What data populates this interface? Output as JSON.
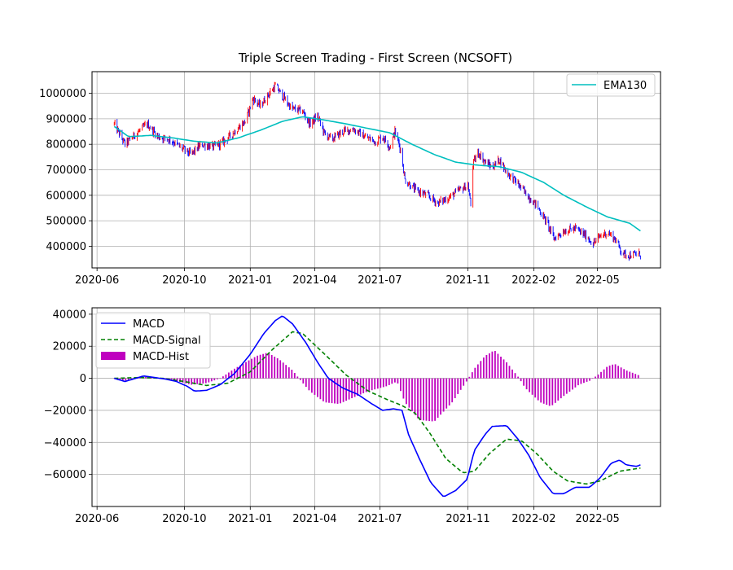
{
  "chart_data": [
    {
      "type": "candlestick",
      "title": "Triple Screen Trading - First Screen (NCSOFT)",
      "xlabel": "",
      "ylabel": "",
      "x_range": [
        "2020-05-25",
        "2022-07-28"
      ],
      "ylim": [
        315000,
        1085000
      ],
      "x_ticks": [
        "2020-06",
        "2020-10",
        "2021-01",
        "2021-04",
        "2021-07",
        "2021-11",
        "2022-02",
        "2022-05"
      ],
      "x_tick_dates": [
        "2020-06-01",
        "2020-10-01",
        "2021-01-01",
        "2021-04-01",
        "2021-07-01",
        "2021-11-01",
        "2022-02-01",
        "2022-05-01"
      ],
      "y_ticks": [
        400000,
        500000,
        600000,
        700000,
        800000,
        900000,
        1000000
      ],
      "y_tick_labels": [
        "400000",
        "500000",
        "600000",
        "700000",
        "800000",
        "900000",
        "1000000"
      ],
      "grid": true,
      "legend_position": "top-right",
      "legend": [
        "EMA130"
      ],
      "colors": {
        "up": "#ff0000",
        "down": "#0000ff",
        "ema": "#00bfbf"
      },
      "price_anchors": [
        [
          "2020-06-25",
          880000
        ],
        [
          "2020-07-10",
          800000
        ],
        [
          "2020-07-25",
          840000
        ],
        [
          "2020-08-10",
          880000
        ],
        [
          "2020-08-25",
          830000
        ],
        [
          "2020-09-10",
          820000
        ],
        [
          "2020-09-25",
          790000
        ],
        [
          "2020-10-10",
          760000
        ],
        [
          "2020-10-25",
          800000
        ],
        [
          "2020-11-10",
          790000
        ],
        [
          "2020-11-25",
          810000
        ],
        [
          "2020-12-10",
          850000
        ],
        [
          "2020-12-25",
          890000
        ],
        [
          "2021-01-05",
          980000
        ],
        [
          "2021-01-15",
          950000
        ],
        [
          "2021-01-25",
          990000
        ],
        [
          "2021-02-05",
          1030000
        ],
        [
          "2021-02-15",
          990000
        ],
        [
          "2021-02-28",
          940000
        ],
        [
          "2021-03-15",
          930000
        ],
        [
          "2021-03-25",
          880000
        ],
        [
          "2021-04-05",
          910000
        ],
        [
          "2021-04-15",
          840000
        ],
        [
          "2021-04-25",
          820000
        ],
        [
          "2021-05-10",
          850000
        ],
        [
          "2021-05-25",
          860000
        ],
        [
          "2021-06-10",
          830000
        ],
        [
          "2021-06-25",
          810000
        ],
        [
          "2021-07-05",
          830000
        ],
        [
          "2021-07-15",
          790000
        ],
        [
          "2021-07-22",
          850000
        ],
        [
          "2021-07-30",
          780000
        ],
        [
          "2021-08-05",
          660000
        ],
        [
          "2021-08-20",
          620000
        ],
        [
          "2021-09-05",
          600000
        ],
        [
          "2021-09-20",
          570000
        ],
        [
          "2021-10-05",
          590000
        ],
        [
          "2021-10-20",
          620000
        ],
        [
          "2021-11-01",
          640000
        ],
        [
          "2021-11-05",
          560000
        ],
        [
          "2021-11-08",
          720000
        ],
        [
          "2021-11-15",
          770000
        ],
        [
          "2021-11-25",
          730000
        ],
        [
          "2021-12-05",
          710000
        ],
        [
          "2021-12-15",
          740000
        ],
        [
          "2021-12-25",
          690000
        ],
        [
          "2022-01-05",
          660000
        ],
        [
          "2022-01-20",
          610000
        ],
        [
          "2022-02-05",
          560000
        ],
        [
          "2022-02-20",
          490000
        ],
        [
          "2022-03-01",
          430000
        ],
        [
          "2022-03-15",
          460000
        ],
        [
          "2022-03-31",
          470000
        ],
        [
          "2022-04-15",
          440000
        ],
        [
          "2022-04-25",
          410000
        ],
        [
          "2022-05-05",
          440000
        ],
        [
          "2022-05-15",
          455000
        ],
        [
          "2022-05-25",
          430000
        ],
        [
          "2022-05-31",
          400000
        ],
        [
          "2022-06-05",
          370000
        ],
        [
          "2022-06-15",
          365000
        ],
        [
          "2022-06-30",
          370000
        ]
      ],
      "ema_anchors": [
        [
          "2020-06-25",
          870000
        ],
        [
          "2020-07-15",
          830000
        ],
        [
          "2020-08-15",
          835000
        ],
        [
          "2020-09-15",
          825000
        ],
        [
          "2020-10-15",
          812000
        ],
        [
          "2020-11-15",
          805000
        ],
        [
          "2020-12-15",
          825000
        ],
        [
          "2021-01-15",
          855000
        ],
        [
          "2021-02-15",
          890000
        ],
        [
          "2021-03-15",
          908000
        ],
        [
          "2021-04-15",
          895000
        ],
        [
          "2021-05-15",
          880000
        ],
        [
          "2021-06-15",
          862000
        ],
        [
          "2021-07-15",
          845000
        ],
        [
          "2021-08-15",
          800000
        ],
        [
          "2021-09-15",
          760000
        ],
        [
          "2021-10-15",
          730000
        ],
        [
          "2021-11-15",
          718000
        ],
        [
          "2021-12-15",
          712000
        ],
        [
          "2022-01-15",
          690000
        ],
        [
          "2022-02-15",
          650000
        ],
        [
          "2022-03-15",
          600000
        ],
        [
          "2022-04-15",
          555000
        ],
        [
          "2022-05-15",
          515000
        ],
        [
          "2022-06-15",
          490000
        ],
        [
          "2022-06-30",
          460000
        ]
      ]
    },
    {
      "type": "line",
      "title": "",
      "xlabel": "",
      "ylabel": "",
      "x_range": [
        "2020-05-25",
        "2022-07-28"
      ],
      "ylim": [
        -80000,
        44000
      ],
      "x_ticks": [
        "2020-06",
        "2020-10",
        "2021-01",
        "2021-04",
        "2021-07",
        "2021-11",
        "2022-02",
        "2022-05"
      ],
      "x_tick_dates": [
        "2020-06-01",
        "2020-10-01",
        "2021-01-01",
        "2021-04-01",
        "2021-07-01",
        "2021-11-01",
        "2022-02-01",
        "2022-05-01"
      ],
      "y_ticks": [
        -60000,
        -40000,
        -20000,
        0,
        20000,
        40000
      ],
      "y_tick_labels": [
        "−60000",
        "−40000",
        "−20000",
        "0",
        "20000",
        "40000"
      ],
      "grid": true,
      "legend_position": "top-left",
      "legend": [
        "MACD",
        "MACD-Signal",
        "MACD-Hist"
      ],
      "colors": {
        "macd": "#0000ff",
        "signal": "#008000",
        "hist": "#bf00bf"
      },
      "series": [
        {
          "name": "MACD",
          "style": "solid",
          "points": [
            [
              "2020-06-25",
              0
            ],
            [
              "2020-07-10",
              -2000
            ],
            [
              "2020-07-25",
              0
            ],
            [
              "2020-08-05",
              1500
            ],
            [
              "2020-08-20",
              500
            ],
            [
              "2020-09-05",
              -500
            ],
            [
              "2020-09-20",
              -2000
            ],
            [
              "2020-10-05",
              -5000
            ],
            [
              "2020-10-15",
              -8000
            ],
            [
              "2020-11-01",
              -7500
            ],
            [
              "2020-11-20",
              -4000
            ],
            [
              "2020-12-10",
              3000
            ],
            [
              "2021-01-01",
              15000
            ],
            [
              "2021-01-20",
              28000
            ],
            [
              "2021-02-05",
              36000
            ],
            [
              "2021-02-15",
              39000
            ],
            [
              "2021-03-01",
              34000
            ],
            [
              "2021-03-20",
              22000
            ],
            [
              "2021-04-05",
              10000
            ],
            [
              "2021-04-20",
              0
            ],
            [
              "2021-05-10",
              -6000
            ],
            [
              "2021-05-31",
              -10000
            ],
            [
              "2021-06-20",
              -16000
            ],
            [
              "2021-07-05",
              -20000
            ],
            [
              "2021-07-20",
              -19000
            ],
            [
              "2021-08-01",
              -20000
            ],
            [
              "2021-08-10",
              -35000
            ],
            [
              "2021-08-25",
              -50000
            ],
            [
              "2021-09-10",
              -65000
            ],
            [
              "2021-09-28",
              -74000
            ],
            [
              "2021-10-15",
              -70000
            ],
            [
              "2021-10-31",
              -63000
            ],
            [
              "2021-11-10",
              -45000
            ],
            [
              "2021-11-25",
              -35000
            ],
            [
              "2021-12-05",
              -30000
            ],
            [
              "2021-12-25",
              -29500
            ],
            [
              "2022-01-10",
              -38000
            ],
            [
              "2022-01-25",
              -48000
            ],
            [
              "2022-02-10",
              -62000
            ],
            [
              "2022-02-28",
              -72000
            ],
            [
              "2022-03-15",
              -72000
            ],
            [
              "2022-03-31",
              -68000
            ],
            [
              "2022-04-20",
              -68000
            ],
            [
              "2022-05-05",
              -62000
            ],
            [
              "2022-05-20",
              -53000
            ],
            [
              "2022-06-01",
              -51000
            ],
            [
              "2022-06-10",
              -54000
            ],
            [
              "2022-06-25",
              -55000
            ],
            [
              "2022-06-30",
              -54000
            ]
          ]
        },
        {
          "name": "MACD-Signal",
          "style": "dashed",
          "points": [
            [
              "2020-06-25",
              0
            ],
            [
              "2020-08-01",
              500
            ],
            [
              "2020-09-01",
              0
            ],
            [
              "2020-10-01",
              -2000
            ],
            [
              "2020-11-01",
              -4500
            ],
            [
              "2020-12-01",
              -3000
            ],
            [
              "2021-01-01",
              4000
            ],
            [
              "2021-02-01",
              18000
            ],
            [
              "2021-03-01",
              29000
            ],
            [
              "2021-03-15",
              28000
            ],
            [
              "2021-04-15",
              15000
            ],
            [
              "2021-05-15",
              2000
            ],
            [
              "2021-06-15",
              -8000
            ],
            [
              "2021-07-15",
              -14000
            ],
            [
              "2021-08-01",
              -17000
            ],
            [
              "2021-08-20",
              -22000
            ],
            [
              "2021-09-10",
              -35000
            ],
            [
              "2021-10-01",
              -50000
            ],
            [
              "2021-10-25",
              -59000
            ],
            [
              "2021-11-10",
              -58000
            ],
            [
              "2021-12-01",
              -47000
            ],
            [
              "2021-12-25",
              -38000
            ],
            [
              "2022-01-15",
              -39000
            ],
            [
              "2022-02-05",
              -47000
            ],
            [
              "2022-02-28",
              -58000
            ],
            [
              "2022-03-20",
              -64000
            ],
            [
              "2022-04-15",
              -66000
            ],
            [
              "2022-05-05",
              -64000
            ],
            [
              "2022-06-01",
              -58000
            ],
            [
              "2022-06-30",
              -56000
            ]
          ]
        },
        {
          "name": "MACD-Hist",
          "style": "bar",
          "points": [
            [
              "2020-06-25",
              0
            ],
            [
              "2020-07-10",
              -1500
            ],
            [
              "2020-08-05",
              1000
            ],
            [
              "2020-09-10",
              -500
            ],
            [
              "2020-10-10",
              -4000
            ],
            [
              "2020-11-01",
              -3000
            ],
            [
              "2020-11-20",
              0
            ],
            [
              "2020-12-10",
              6000
            ],
            [
              "2021-01-10",
              14000
            ],
            [
              "2021-01-25",
              16000
            ],
            [
              "2021-02-10",
              12000
            ],
            [
              "2021-03-01",
              5000
            ],
            [
              "2021-03-10",
              0
            ],
            [
              "2021-03-25",
              -8000
            ],
            [
              "2021-04-15",
              -15000
            ],
            [
              "2021-05-05",
              -16000
            ],
            [
              "2021-05-25",
              -12000
            ],
            [
              "2021-06-15",
              -8000
            ],
            [
              "2021-07-10",
              -5000
            ],
            [
              "2021-07-25",
              -2000
            ],
            [
              "2021-08-05",
              -15000
            ],
            [
              "2021-08-25",
              -26000
            ],
            [
              "2021-09-15",
              -27000
            ],
            [
              "2021-10-10",
              -15000
            ],
            [
              "2021-10-30",
              -2000
            ],
            [
              "2021-11-10",
              6000
            ],
            [
              "2021-11-25",
              14000
            ],
            [
              "2021-12-08",
              17500
            ],
            [
              "2021-12-25",
              10000
            ],
            [
              "2022-01-10",
              1000
            ],
            [
              "2022-01-20",
              -6000
            ],
            [
              "2022-02-10",
              -15000
            ],
            [
              "2022-02-25",
              -17500
            ],
            [
              "2022-03-15",
              -11000
            ],
            [
              "2022-04-05",
              -4000
            ],
            [
              "2022-04-20",
              -1500
            ],
            [
              "2022-05-01",
              2000
            ],
            [
              "2022-05-15",
              7500
            ],
            [
              "2022-05-25",
              9000
            ],
            [
              "2022-06-10",
              5000
            ],
            [
              "2022-06-30",
              1500
            ]
          ]
        }
      ]
    }
  ]
}
